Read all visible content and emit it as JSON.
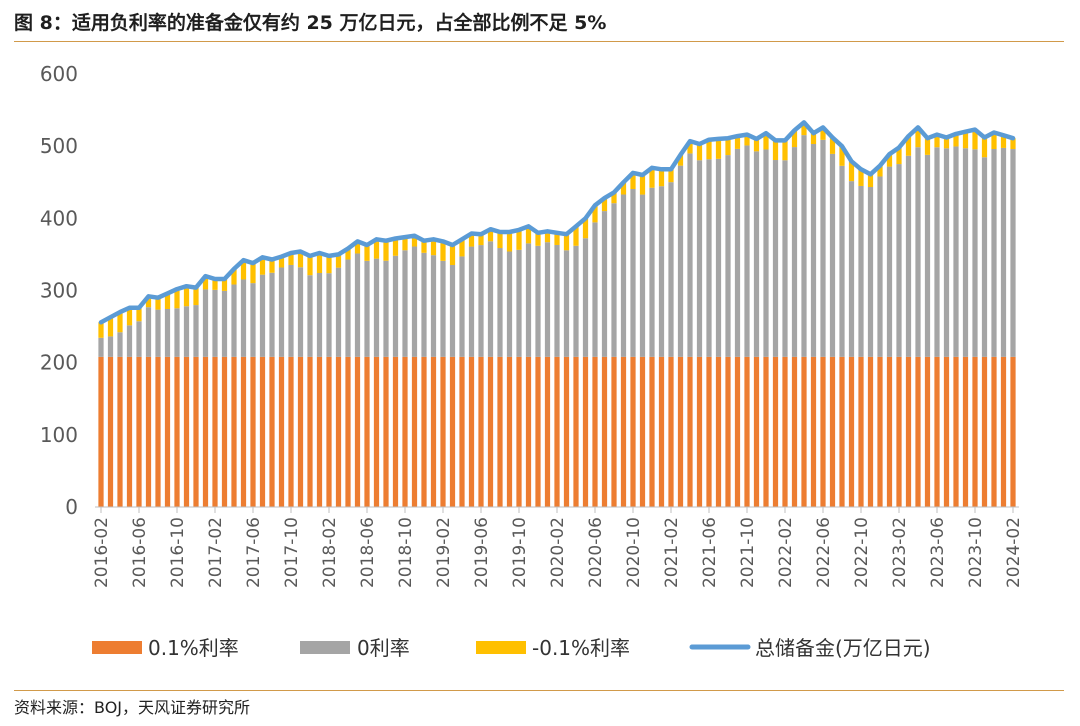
{
  "header": {
    "title": "图 8：适用负利率的准备金仅有约 25 万亿日元，占全部比例不足 5%"
  },
  "footer": {
    "source": "资料来源：BOJ，天风证券研究所"
  },
  "colors": {
    "pos": "#ED7D31",
    "zero": "#A5A5A5",
    "neg": "#FFC000",
    "total": "#5B9BD5",
    "rule": "#d19a4a"
  },
  "chart_data": {
    "type": "bar",
    "stacked": true,
    "title": "",
    "xlabel": "",
    "ylabel": "",
    "ylim": [
      0,
      600
    ],
    "yticks": [
      0,
      100,
      200,
      300,
      400,
      500,
      600
    ],
    "x_start": "2016-02",
    "x_end": "2024-02",
    "x_tick_labels": [
      "2016-02",
      "2016-06",
      "2016-10",
      "2017-02",
      "2017-06",
      "2017-10",
      "2018-02",
      "2018-06",
      "2018-10",
      "2019-02",
      "2019-06",
      "2019-10",
      "2020-02",
      "2020-06",
      "2020-10",
      "2021-02",
      "2021-06",
      "2021-10",
      "2022-02",
      "2022-06",
      "2022-10",
      "2023-02",
      "2023-06",
      "2023-10",
      "2024-02"
    ],
    "legend": [
      "0.1%利率",
      "0利率",
      "-0.1%利率",
      "总储备金(万亿日元)"
    ],
    "legend_position": "bottom",
    "total_anchors": [
      [
        "2016-02",
        256
      ],
      [
        "2016-04",
        270
      ],
      [
        "2016-05",
        276
      ],
      [
        "2016-06",
        276
      ],
      [
        "2016-07",
        292
      ],
      [
        "2016-08",
        290
      ],
      [
        "2016-09",
        296
      ],
      [
        "2016-10",
        302
      ],
      [
        "2016-11",
        306
      ],
      [
        "2016-12",
        304
      ],
      [
        "2017-01",
        320
      ],
      [
        "2017-02",
        316
      ],
      [
        "2017-03",
        316
      ],
      [
        "2017-04",
        330
      ],
      [
        "2017-05",
        342
      ],
      [
        "2017-06",
        338
      ],
      [
        "2017-07",
        346
      ],
      [
        "2017-08",
        343
      ],
      [
        "2017-09",
        347
      ],
      [
        "2017-10",
        352
      ],
      [
        "2017-11",
        354
      ],
      [
        "2017-12",
        348
      ],
      [
        "2018-01",
        352
      ],
      [
        "2018-02",
        348
      ],
      [
        "2018-03",
        350
      ],
      [
        "2018-04",
        358
      ],
      [
        "2018-05",
        368
      ],
      [
        "2018-06",
        363
      ],
      [
        "2018-07",
        371
      ],
      [
        "2018-08",
        369
      ],
      [
        "2018-09",
        372
      ],
      [
        "2018-10",
        374
      ],
      [
        "2018-11",
        376
      ],
      [
        "2018-12",
        369
      ],
      [
        "2019-01",
        371
      ],
      [
        "2019-02",
        368
      ],
      [
        "2019-03",
        363
      ],
      [
        "2019-04",
        371
      ],
      [
        "2019-05",
        379
      ],
      [
        "2019-06",
        378
      ],
      [
        "2019-07",
        385
      ],
      [
        "2019-08",
        381
      ],
      [
        "2019-09",
        381
      ],
      [
        "2019-10",
        384
      ],
      [
        "2019-11",
        389
      ],
      [
        "2019-12",
        380
      ],
      [
        "2020-01",
        382
      ],
      [
        "2020-02",
        380
      ],
      [
        "2020-03",
        378
      ],
      [
        "2020-04",
        389
      ],
      [
        "2020-05",
        400
      ],
      [
        "2020-06",
        418
      ],
      [
        "2020-07",
        428
      ],
      [
        "2020-08",
        436
      ],
      [
        "2020-09",
        450
      ],
      [
        "2020-10",
        463
      ],
      [
        "2020-11",
        460
      ],
      [
        "2020-12",
        470
      ],
      [
        "2021-01",
        468
      ],
      [
        "2021-02",
        468
      ],
      [
        "2021-03",
        488
      ],
      [
        "2021-04",
        507
      ],
      [
        "2021-05",
        503
      ],
      [
        "2021-06",
        509
      ],
      [
        "2021-07",
        510
      ],
      [
        "2021-08",
        511
      ],
      [
        "2021-09",
        514
      ],
      [
        "2021-10",
        516
      ],
      [
        "2021-11",
        510
      ],
      [
        "2021-12",
        518
      ],
      [
        "2022-01",
        508
      ],
      [
        "2022-02",
        508
      ],
      [
        "2022-03",
        522
      ],
      [
        "2022-04",
        533
      ],
      [
        "2022-05",
        518
      ],
      [
        "2022-06",
        526
      ],
      [
        "2022-07",
        512
      ],
      [
        "2022-08",
        500
      ],
      [
        "2022-09",
        479
      ],
      [
        "2022-10",
        468
      ],
      [
        "2022-11",
        461
      ],
      [
        "2022-12",
        473
      ],
      [
        "2023-01",
        489
      ],
      [
        "2023-02",
        498
      ],
      [
        "2023-03",
        514
      ],
      [
        "2023-04",
        526
      ],
      [
        "2023-05",
        511
      ],
      [
        "2023-06",
        516
      ],
      [
        "2023-07",
        512
      ],
      [
        "2023-08",
        517
      ],
      [
        "2023-09",
        520
      ],
      [
        "2023-10",
        523
      ],
      [
        "2023-11",
        512
      ],
      [
        "2023-12",
        519
      ],
      [
        "2024-01",
        515
      ],
      [
        "2024-02",
        511
      ]
    ],
    "positive_rate_level": 208,
    "negative_rate_band": [
      15,
      28
    ]
  }
}
